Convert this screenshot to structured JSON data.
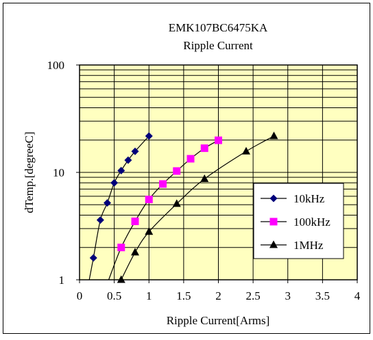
{
  "colors": {
    "plot_background": "#FFFFC0",
    "grid": "#000000",
    "series_10kHz": "#00007A",
    "series_100kHz": "#FF00FF",
    "series_1MHz": "#000000"
  },
  "chart_data": {
    "type": "line",
    "title": "EMK107BC6475KA",
    "subtitle": "Ripple Current",
    "xlabel": "Ripple Current[Arms]",
    "ylabel": "dTemp.[degreeC]",
    "xlim": [
      0,
      4
    ],
    "ylim": [
      1,
      100
    ],
    "y_scale": "log",
    "x_ticks": [
      "0",
      "0.5",
      "1",
      "1.5",
      "2",
      "2.5",
      "3",
      "3.5",
      "4"
    ],
    "y_ticks": [
      "1",
      "10",
      "100"
    ],
    "grid": true,
    "legend": "right",
    "series": [
      {
        "name": "10kHz",
        "marker": "diamond",
        "points": [
          [
            0.2,
            1.6
          ],
          [
            0.3,
            3.6
          ],
          [
            0.4,
            5.2
          ],
          [
            0.5,
            8.0
          ],
          [
            0.6,
            10.4
          ],
          [
            0.7,
            13.0
          ],
          [
            0.8,
            15.7
          ],
          [
            1.0,
            21.8
          ]
        ],
        "curve": [
          [
            0.14,
            1.0
          ],
          [
            0.2,
            1.6
          ],
          [
            0.3,
            3.6
          ],
          [
            0.4,
            5.2
          ],
          [
            0.5,
            8.0
          ],
          [
            0.6,
            10.4
          ],
          [
            0.7,
            13.0
          ],
          [
            0.8,
            15.7
          ],
          [
            1.0,
            21.8
          ]
        ]
      },
      {
        "name": "100kHz",
        "marker": "square",
        "points": [
          [
            0.6,
            2.0
          ],
          [
            0.8,
            3.5
          ],
          [
            1.0,
            5.6
          ],
          [
            1.2,
            7.8
          ],
          [
            1.4,
            10.3
          ],
          [
            1.6,
            13.4
          ],
          [
            1.8,
            16.8
          ],
          [
            2.0,
            19.9
          ]
        ],
        "curve": [
          [
            0.42,
            1.0
          ],
          [
            0.6,
            2.0
          ],
          [
            0.8,
            3.5
          ],
          [
            1.0,
            5.6
          ],
          [
            1.2,
            7.8
          ],
          [
            1.4,
            10.3
          ],
          [
            1.6,
            13.4
          ],
          [
            1.8,
            16.8
          ],
          [
            2.0,
            19.9
          ]
        ]
      },
      {
        "name": "1MHz",
        "marker": "triangle",
        "points": [
          [
            0.6,
            1.0
          ],
          [
            0.8,
            1.8
          ],
          [
            1.0,
            2.8
          ],
          [
            1.4,
            5.1
          ],
          [
            1.8,
            8.7
          ],
          [
            2.4,
            15.7
          ],
          [
            2.8,
            21.8
          ]
        ],
        "curve": [
          [
            0.6,
            1.0
          ],
          [
            0.8,
            1.8
          ],
          [
            1.0,
            2.8
          ],
          [
            1.4,
            5.1
          ],
          [
            1.8,
            8.7
          ],
          [
            2.4,
            15.7
          ],
          [
            2.8,
            21.8
          ]
        ]
      }
    ]
  }
}
